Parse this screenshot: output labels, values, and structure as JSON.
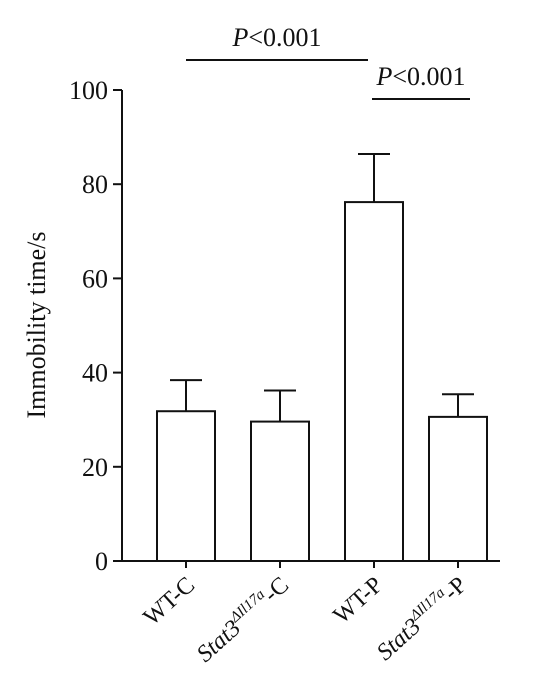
{
  "chart_data": {
    "type": "bar",
    "ylabel": "Immobility time/s",
    "ylim": [
      0,
      100
    ],
    "yticks": [
      0,
      20,
      40,
      60,
      80,
      100
    ],
    "categories": [
      {
        "main": "WT-C",
        "sup": "",
        "suffix": ""
      },
      {
        "main": "Stat3",
        "sup": "ΔIl17a",
        "suffix": "-C"
      },
      {
        "main": "WT-P",
        "sup": "",
        "suffix": ""
      },
      {
        "main": "Stat3",
        "sup": "ΔIl17a",
        "suffix": "-P"
      }
    ],
    "values": [
      31.8,
      29.6,
      76.2,
      30.6
    ],
    "errors": [
      6.6,
      6.6,
      10.2,
      4.8
    ],
    "significance": [
      {
        "from": 0,
        "to": 2,
        "p_italic": "P",
        "p_rest": "<0.001"
      },
      {
        "from": 2,
        "to": 3,
        "p_italic": "P",
        "p_rest": "<0.001"
      }
    ],
    "colors": {
      "bar_fill": "#ffffff",
      "stroke": "#111111"
    }
  }
}
